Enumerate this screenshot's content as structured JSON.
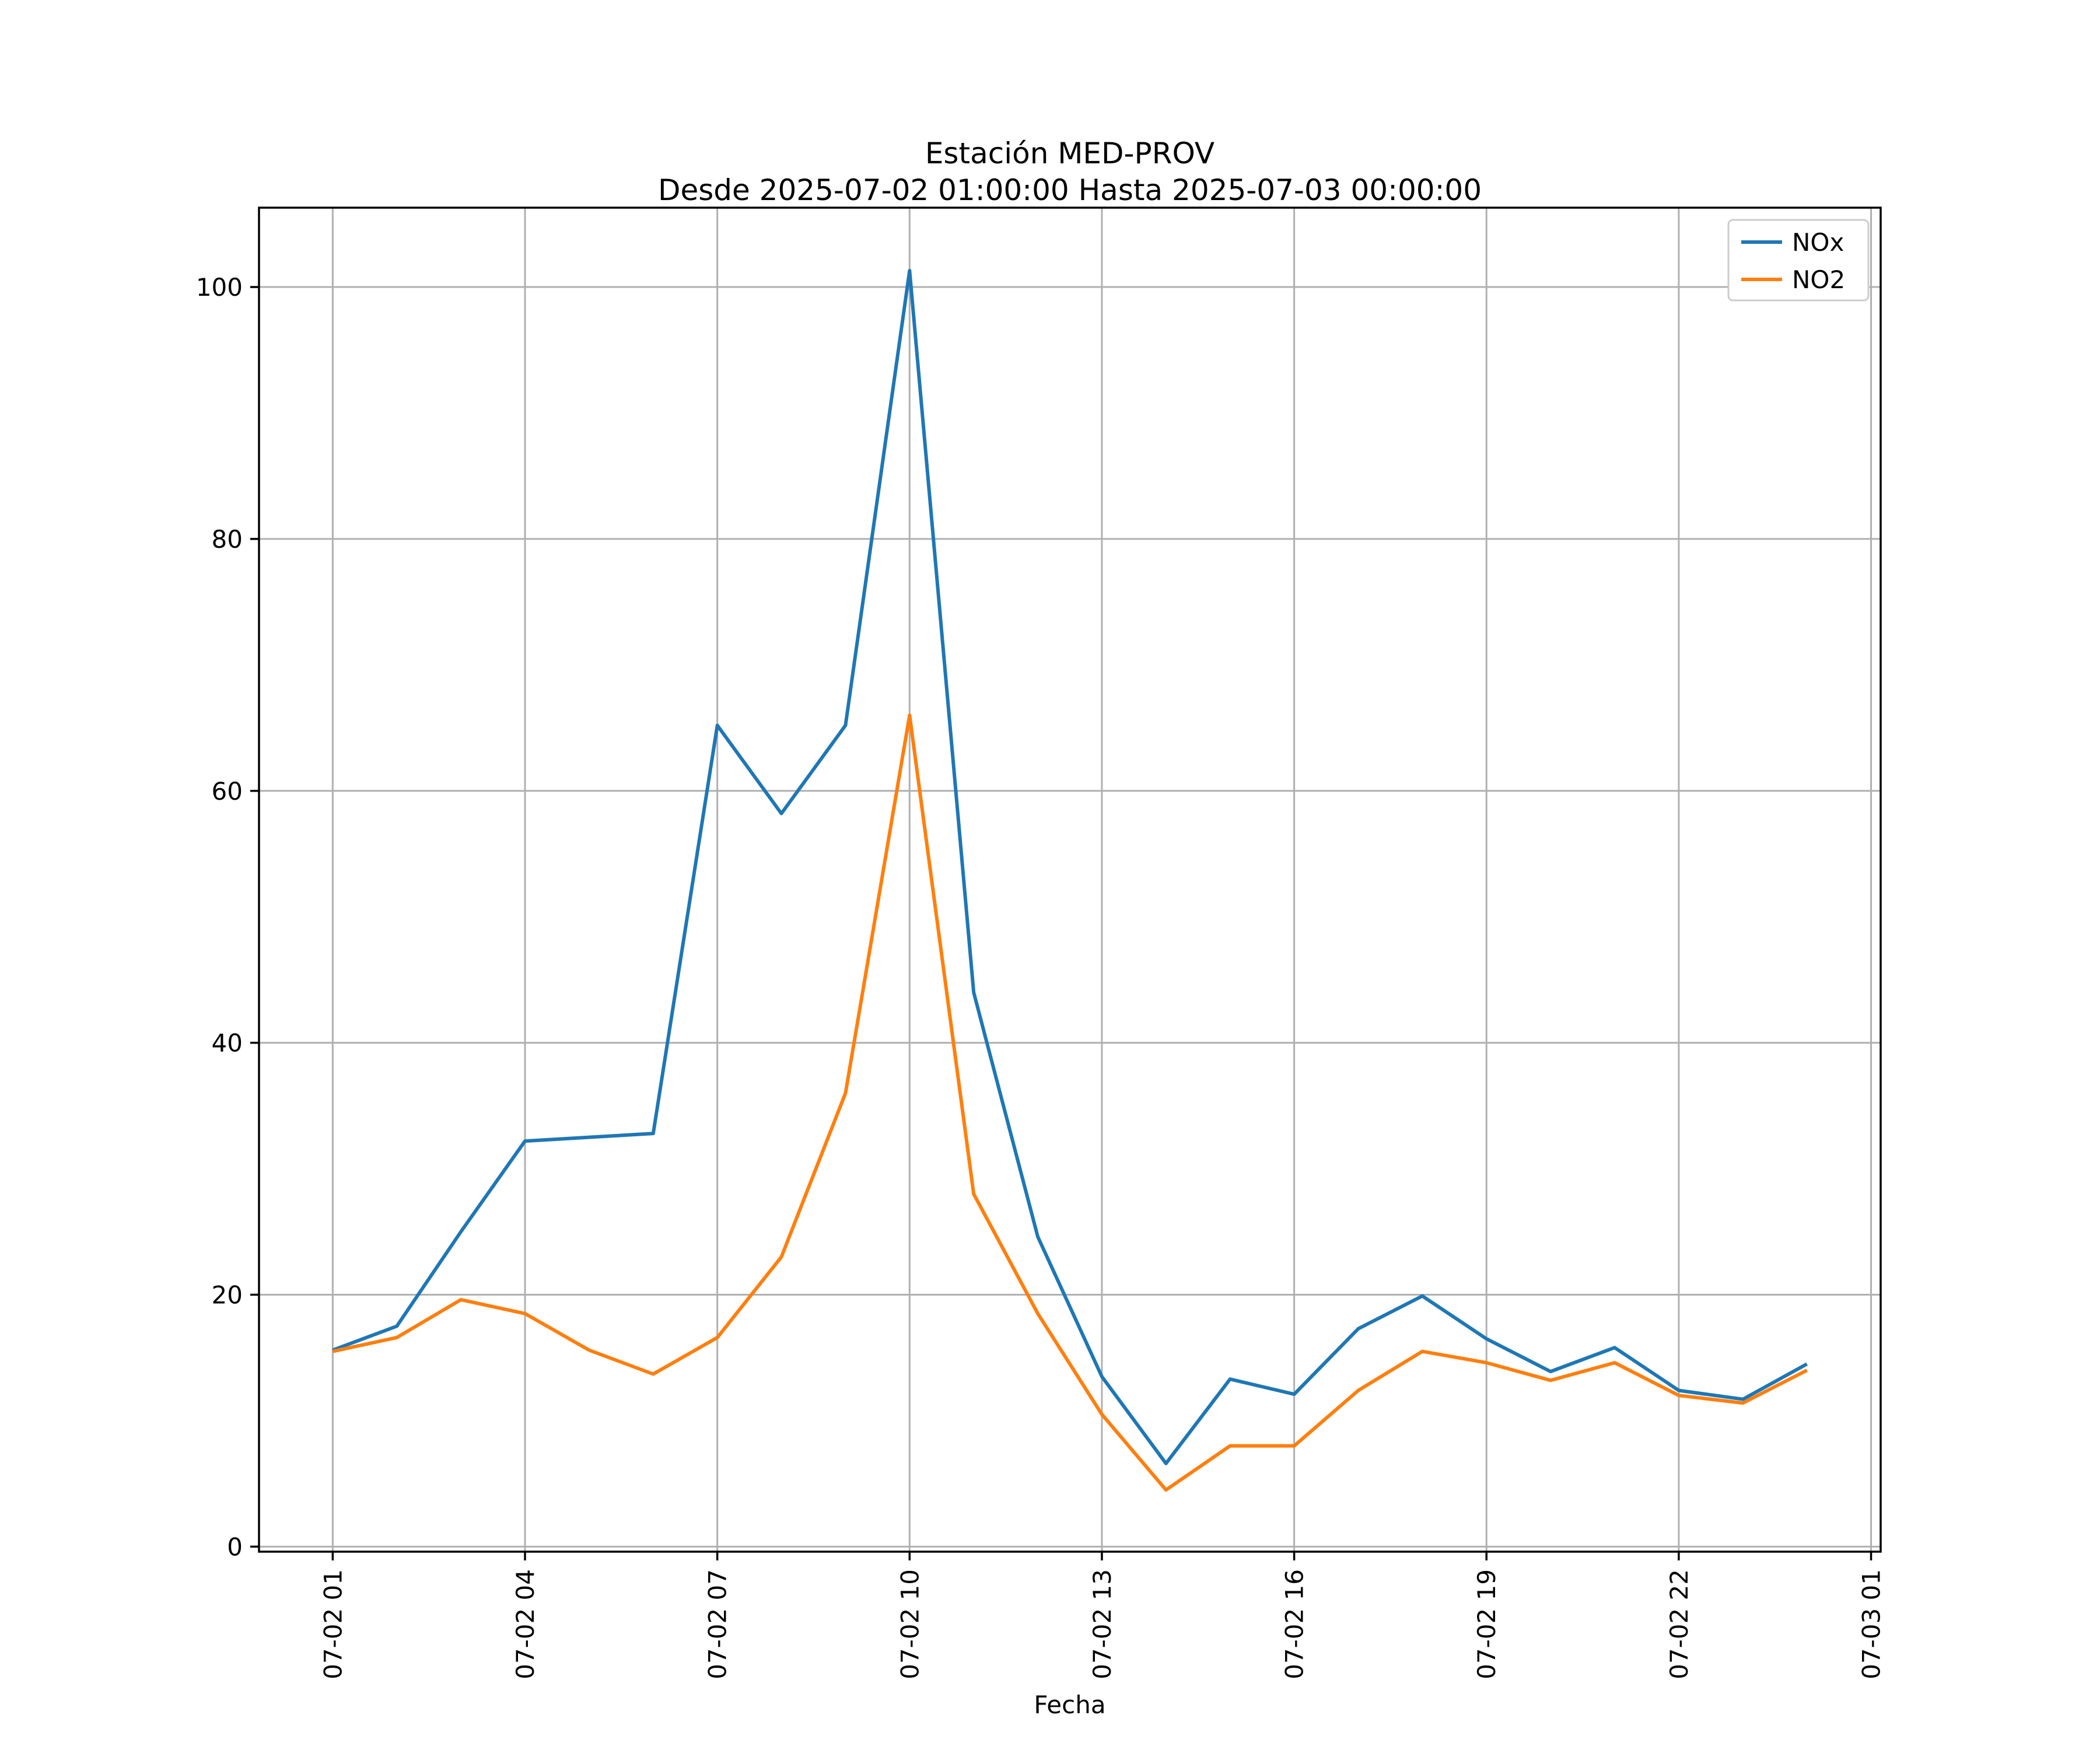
{
  "chart_data": {
    "type": "line",
    "title": "Estación MED-PROV",
    "subtitle": "Desde 2025-07-02 01:00:00 Hasta 2025-07-03 00:00:00",
    "xlabel": "Fecha",
    "ylabel": "",
    "x_unit": "hour of day on 2025-07-02 (24 = 2025-07-03 00:00)",
    "x": [
      1,
      2,
      3,
      4,
      5,
      6,
      7,
      8,
      9,
      10,
      11,
      12,
      13,
      14,
      15,
      16,
      17,
      18,
      19,
      20,
      21,
      22,
      23,
      24
    ],
    "series": [
      {
        "name": "NOx",
        "color": "#1f77b4",
        "values": [
          15.6,
          17.5,
          25.0,
          32.2,
          32.5,
          32.8,
          65.2,
          58.2,
          65.2,
          101.3,
          44.0,
          24.6,
          13.5,
          6.6,
          13.3,
          12.1,
          17.3,
          19.9,
          16.5,
          13.9,
          15.8,
          12.4,
          11.7,
          14.5
        ]
      },
      {
        "name": "NO2",
        "color": "#ff7f0e",
        "values": [
          15.5,
          16.6,
          19.6,
          18.5,
          15.6,
          13.7,
          16.6,
          23.0,
          36.0,
          66.0,
          28.0,
          18.5,
          10.5,
          4.5,
          8.0,
          8.0,
          12.4,
          15.5,
          14.6,
          13.2,
          14.6,
          12.0,
          11.4,
          14.0
        ]
      }
    ],
    "x_ticks": [
      1,
      4,
      7,
      10,
      13,
      16,
      19,
      22,
      25
    ],
    "x_tick_labels": [
      "07-02 01",
      "07-02 04",
      "07-02 07",
      "07-02 10",
      "07-02 13",
      "07-02 16",
      "07-02 19",
      "07-02 22",
      "07-03 01"
    ],
    "x_tick_rotation": 90,
    "y_ticks": [
      0,
      20,
      40,
      60,
      80,
      100
    ],
    "y_tick_labels": [
      "0",
      "20",
      "40",
      "60",
      "80",
      "100"
    ],
    "xlim": [
      -0.15,
      25.15
    ],
    "ylim": [
      -0.4,
      106.3
    ],
    "grid": true,
    "grid_color": "#b0b0b0",
    "background_color": "#ffffff",
    "legend": {
      "position": "upper right",
      "entries": [
        "NOx",
        "NO2"
      ]
    }
  }
}
